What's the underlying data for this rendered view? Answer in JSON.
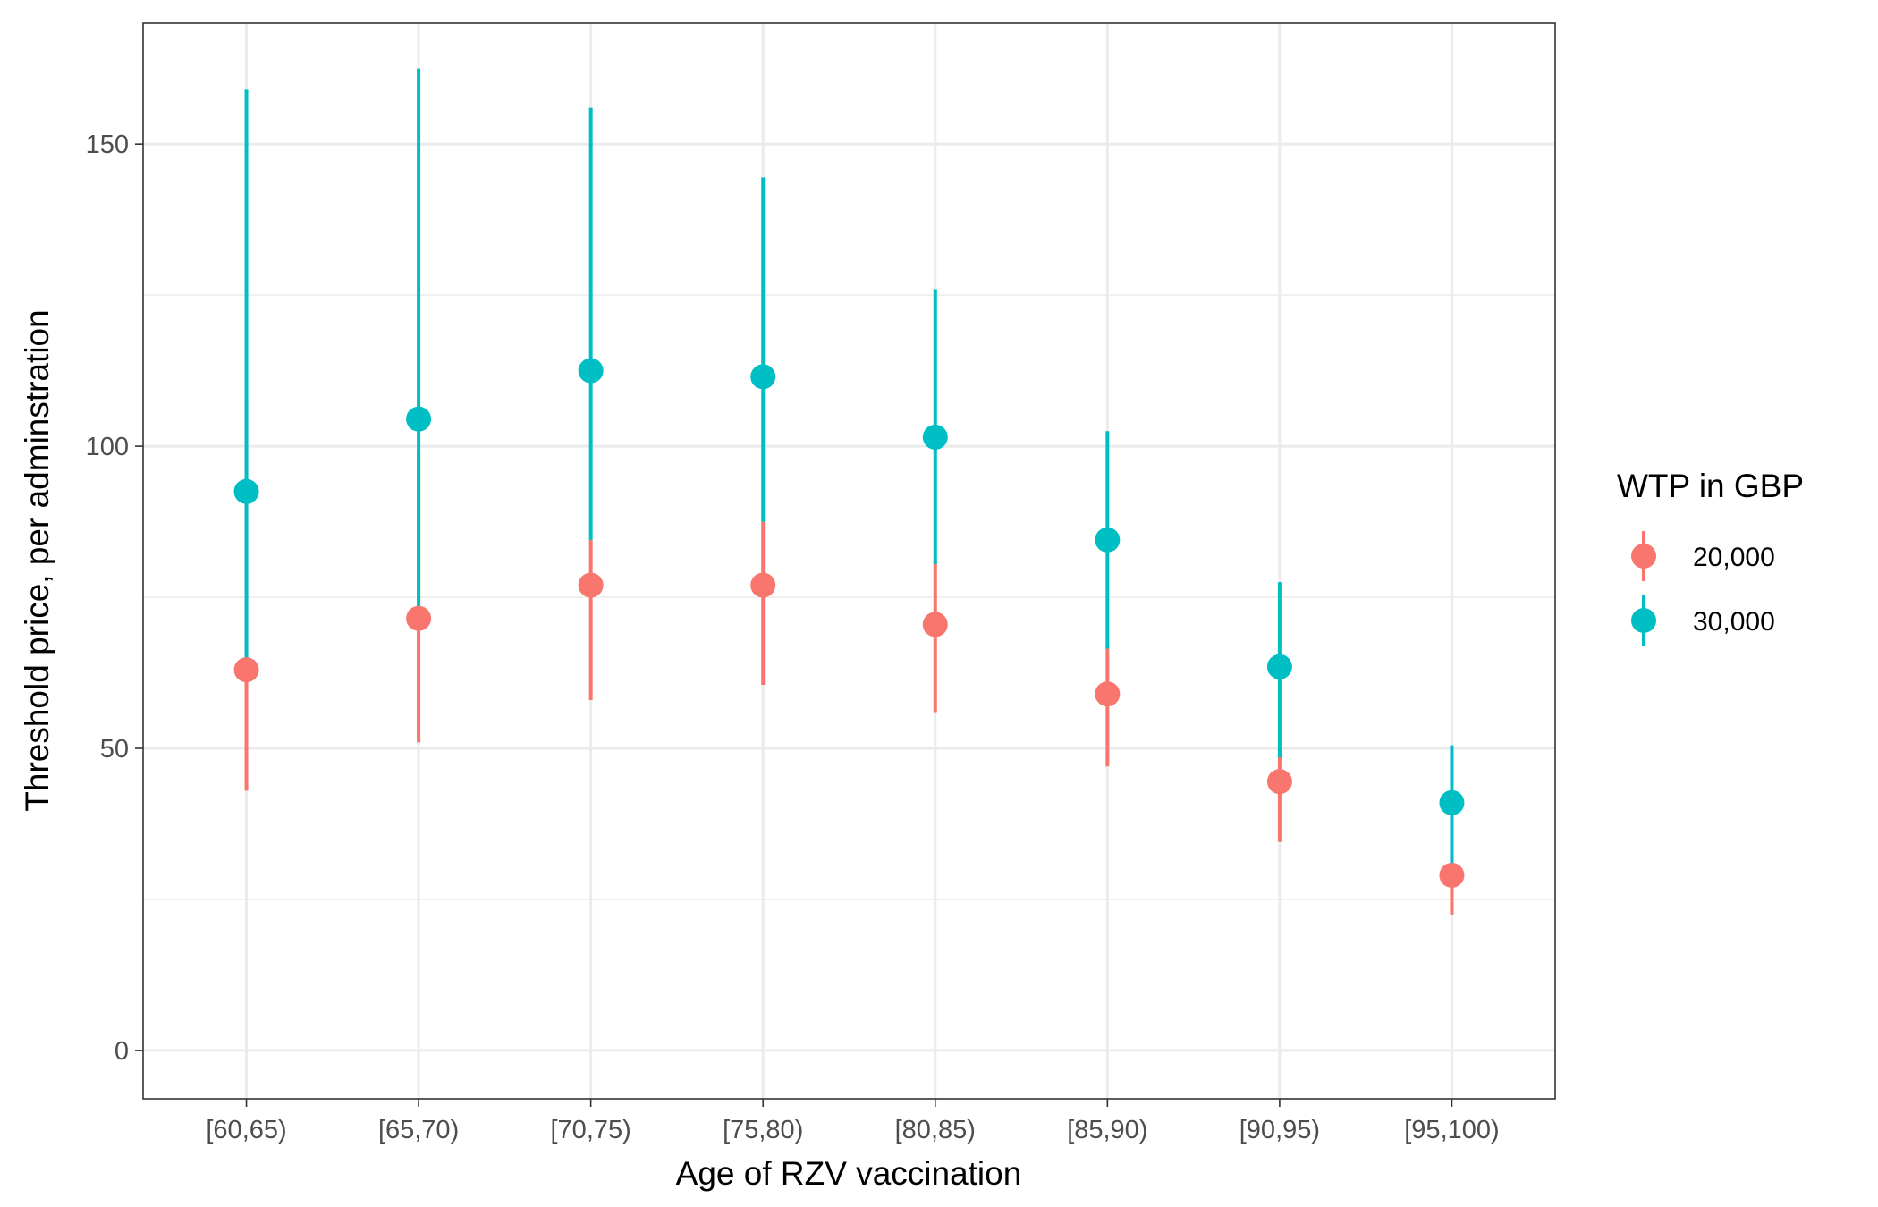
{
  "chart_data": {
    "type": "scatter",
    "subtype": "pointrange",
    "xlabel": "Age of RZV vaccination",
    "ylabel": "Threshold price, per adminstration",
    "categories": [
      "[60,65)",
      "[65,70)",
      "[70,75)",
      "[75,80)",
      "[80,85)",
      "[85,90)",
      "[90,95)",
      "[95,100)"
    ],
    "ylim": [
      -8,
      170
    ],
    "yticks": [
      0,
      50,
      100,
      150
    ],
    "grid": true,
    "legend": {
      "title": "WTP in GBP",
      "position": "right"
    },
    "series": [
      {
        "name": "20,000",
        "color": "#F8766D",
        "values": [
          63,
          71.5,
          77,
          77,
          70.5,
          59,
          44.5,
          29
        ],
        "lower": [
          43,
          51,
          58,
          60.5,
          56,
          47,
          34.5,
          22.5
        ],
        "upper": [
          108,
          99,
          84.5,
          87.5,
          81,
          67,
          49,
          32
        ]
      },
      {
        "name": "30,000",
        "color": "#00BFC4",
        "values": [
          92.5,
          104.5,
          112.5,
          111.5,
          101.5,
          84.5,
          63.5,
          41
        ],
        "lower": [
          63,
          73.5,
          84.5,
          87.5,
          80.5,
          66.5,
          48.5,
          31
        ],
        "upper": [
          159,
          162.5,
          156,
          144.5,
          126,
          102.5,
          77.5,
          50.5
        ]
      }
    ]
  }
}
